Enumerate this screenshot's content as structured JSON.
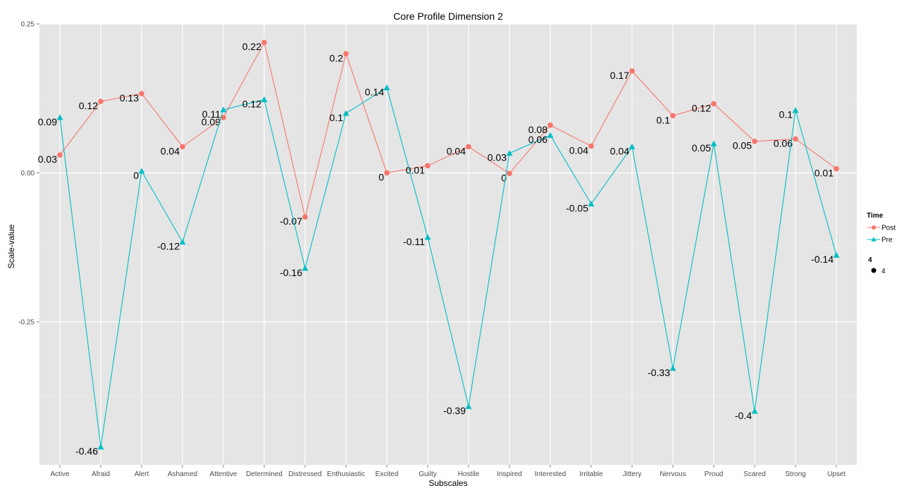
{
  "chart_data": {
    "type": "line",
    "title": "Core Profile Dimension 2",
    "xlabel": "Subscales",
    "ylabel": "Scale-value",
    "ylim": [
      -0.49,
      0.25
    ],
    "yticks": [
      0.25,
      0.0,
      -0.25
    ],
    "ytick_labels": [
      "0.25",
      "0.00",
      "-0.25"
    ],
    "grid": true,
    "legend_position": "right",
    "categories": [
      "Active",
      "Afraid",
      "Alert",
      "Ashamed",
      "Attentive",
      "Determined",
      "Distressed",
      "Enthusiastic",
      "Excited",
      "Guilty",
      "Hostile",
      "Inspired",
      "Interested",
      "Irritable",
      "Jittery",
      "Nervous",
      "Proud",
      "Scared",
      "Strong",
      "Upset"
    ],
    "series": [
      {
        "name": "Post",
        "color": "#F8766D",
        "marker": "circle",
        "values": [
          0.03,
          0.12,
          0.133,
          0.044,
          0.093,
          0.219,
          -0.074,
          0.2,
          0.0,
          0.012,
          0.044,
          -0.001,
          0.08,
          0.045,
          0.171,
          0.096,
          0.116,
          0.053,
          0.057,
          0.007
        ],
        "labels": [
          "0.03",
          "0.12",
          "0.13",
          "0.04",
          "0.09",
          "0.22",
          "-0.07",
          "0.2",
          "0",
          "0.01",
          "0.04",
          "0",
          "0.08",
          "0.04",
          "0.17",
          "0.1",
          "0.12",
          "0.05",
          "0.06",
          "0.01"
        ]
      },
      {
        "name": "Pre",
        "color": "#00BFC4",
        "marker": "triangle",
        "values": [
          0.093,
          -0.46,
          0.003,
          -0.116,
          0.106,
          0.123,
          -0.16,
          0.1,
          0.143,
          -0.108,
          -0.392,
          0.033,
          0.063,
          -0.052,
          0.044,
          -0.328,
          0.049,
          -0.4,
          0.105,
          -0.138
        ],
        "labels": [
          "0.09",
          "-0.46",
          "0",
          "-0.12",
          "0.11",
          "0.12",
          "-0.16",
          "0.1",
          "0.14",
          "-0.11",
          "-0.39",
          "0.03",
          "0.06",
          "-0.05",
          "0.04",
          "-0.33",
          "0.05",
          "-0.4",
          "0.1",
          "-0.14"
        ]
      }
    ],
    "legend": {
      "time_title": "Time",
      "items": [
        "Post",
        "Pre"
      ],
      "size_title": "4",
      "size_label": "4"
    },
    "colors": {
      "panel": "#E5E5E5",
      "grid_major": "#FFFFFF",
      "grid_minor": "#F2F2F2"
    }
  }
}
